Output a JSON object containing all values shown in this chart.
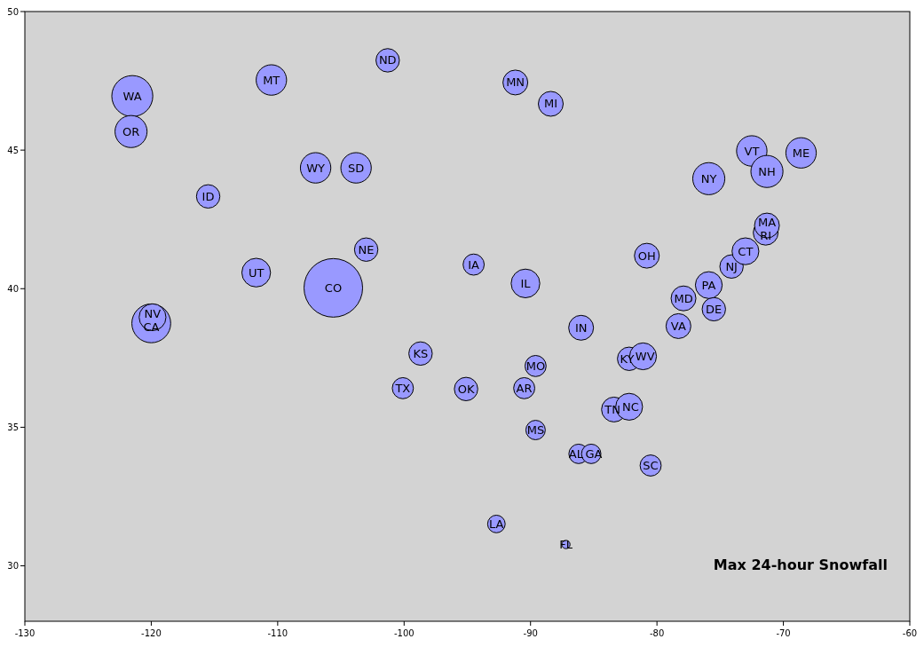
{
  "chart_data": {
    "type": "bubble",
    "title": "Max 24-hour Snowfall",
    "x": [
      -121.5,
      -121.6,
      -120.0,
      -119.9,
      -110.5,
      -101.3,
      -91.2,
      -88.4,
      -107.0,
      -103.8,
      -115.5,
      -111.7,
      -103.0,
      -105.6,
      -94.5,
      -90.4,
      -98.7,
      -100.1,
      -95.1,
      -90.5,
      -89.6,
      -89.6,
      -86.2,
      -85.2,
      -92.7,
      -87.2,
      -83.4,
      -82.2,
      -80.5,
      -82.2,
      -81.1,
      -78.3,
      -86.0,
      -80.8,
      -77.9,
      -75.5,
      -75.9,
      -74.1,
      -73.0,
      -71.4,
      -71.3,
      -75.9,
      -72.5,
      -71.3,
      -68.6
    ],
    "values": [
      46.95,
      45.67,
      38.75,
      38.97,
      47.53,
      48.24,
      47.44,
      46.67,
      44.36,
      44.36,
      43.33,
      40.58,
      41.41,
      40.03,
      40.87,
      40.19,
      37.66,
      36.41,
      36.38,
      36.41,
      37.21,
      34.9,
      34.04,
      34.04,
      31.51,
      30.77,
      35.64,
      35.74,
      33.62,
      37.47,
      37.56,
      38.65,
      38.59,
      41.19,
      39.65,
      39.26,
      40.13,
      40.8,
      41.35,
      42.02,
      42.28,
      43.97,
      44.97,
      44.23,
      44.9
    ],
    "sizes": [
      0.49,
      0.3,
      0.44,
      0.21,
      0.27,
      0.16,
      0.18,
      0.18,
      0.27,
      0.27,
      0.16,
      0.24,
      0.16,
      1,
      0.13,
      0.24,
      0.16,
      0.13,
      0.16,
      0.13,
      0.13,
      0.11,
      0.11,
      0.11,
      0.09,
      0.02,
      0.18,
      0.21,
      0.13,
      0.16,
      0.21,
      0.18,
      0.18,
      0.18,
      0.18,
      0.16,
      0.21,
      0.16,
      0.21,
      0.18,
      0.18,
      0.3,
      0.27,
      0.3,
      0.27
    ],
    "color": "#9999ff",
    "annotations": [
      {
        "text": "WA",
        "x": -121.5,
        "y": 46.95
      },
      {
        "text": "OR",
        "x": -121.6,
        "y": 45.67
      },
      {
        "text": "CA",
        "x": -120.0,
        "y": 38.75
      },
      {
        "text": "NV",
        "x": -119.9,
        "y": 38.97
      },
      {
        "text": "MT",
        "x": -110.5,
        "y": 47.53
      },
      {
        "text": "ND",
        "x": -101.3,
        "y": 48.24
      },
      {
        "text": "MN",
        "x": -91.2,
        "y": 47.44
      },
      {
        "text": "MI",
        "x": -88.4,
        "y": 46.67
      },
      {
        "text": "WY",
        "x": -107.0,
        "y": 44.36
      },
      {
        "text": "SD",
        "x": -103.8,
        "y": 44.36
      },
      {
        "text": "ID",
        "x": -115.5,
        "y": 43.33
      },
      {
        "text": "UT",
        "x": -111.7,
        "y": 40.58
      },
      {
        "text": "NE",
        "x": -103.0,
        "y": 41.41
      },
      {
        "text": "CO",
        "x": -105.6,
        "y": 40.03
      },
      {
        "text": "IA",
        "x": -94.5,
        "y": 40.87
      },
      {
        "text": "IL",
        "x": -90.4,
        "y": 40.19
      },
      {
        "text": "KS",
        "x": -98.7,
        "y": 37.66
      },
      {
        "text": "TX",
        "x": -100.1,
        "y": 36.41
      },
      {
        "text": "OK",
        "x": -95.1,
        "y": 36.38
      },
      {
        "text": "AR",
        "x": -90.5,
        "y": 36.41
      },
      {
        "text": "MO",
        "x": -89.6,
        "y": 37.21
      },
      {
        "text": "MS",
        "x": -89.6,
        "y": 34.9
      },
      {
        "text": "AL",
        "x": -86.2,
        "y": 34.04
      },
      {
        "text": "GA",
        "x": -85.2,
        "y": 34.04
      },
      {
        "text": "LA",
        "x": -92.7,
        "y": 31.51
      },
      {
        "text": "FL",
        "x": -87.2,
        "y": 30.77
      },
      {
        "text": "TN",
        "x": -83.4,
        "y": 35.64
      },
      {
        "text": "NC",
        "x": -82.2,
        "y": 35.74
      },
      {
        "text": "SC",
        "x": -80.5,
        "y": 33.62
      },
      {
        "text": "KY",
        "x": -82.2,
        "y": 37.47
      },
      {
        "text": "WV",
        "x": -81.1,
        "y": 37.56
      },
      {
        "text": "VA",
        "x": -78.3,
        "y": 38.65
      },
      {
        "text": "IN",
        "x": -86.0,
        "y": 38.59
      },
      {
        "text": "OH",
        "x": -80.8,
        "y": 41.19
      },
      {
        "text": "MD",
        "x": -77.9,
        "y": 39.65
      },
      {
        "text": "DE",
        "x": -75.5,
        "y": 39.26
      },
      {
        "text": "PA",
        "x": -75.9,
        "y": 40.13
      },
      {
        "text": "NJ",
        "x": -74.1,
        "y": 40.8
      },
      {
        "text": "CT",
        "x": -73.0,
        "y": 41.35
      },
      {
        "text": "RI",
        "x": -71.4,
        "y": 42.02
      },
      {
        "text": "MA",
        "x": -71.3,
        "y": 42.28
      },
      {
        "text": "NY",
        "x": -75.9,
        "y": 43.97
      },
      {
        "text": "VT",
        "x": -72.5,
        "y": 44.97
      },
      {
        "text": "NH",
        "x": -71.3,
        "y": 44.23
      },
      {
        "text": "ME",
        "x": -68.6,
        "y": 44.9
      }
    ],
    "xlim": [
      -130,
      -60
    ],
    "xticks": [
      -130,
      -120,
      -110,
      -100,
      -90,
      -80,
      -70,
      -60
    ],
    "ylim": [
      28,
      50
    ],
    "yticks": [
      30,
      35,
      40,
      45,
      50
    ],
    "grid": false
  }
}
